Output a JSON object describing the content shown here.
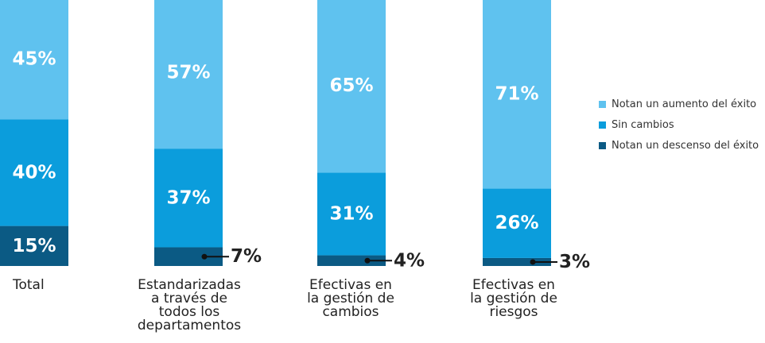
{
  "chart_data": {
    "type": "bar",
    "stacked": true,
    "categories": [
      "Total",
      "Estandarizadas\na través de\ntodos los\ndepartamentos",
      "Efectivas en\nla gestión de\ncambios",
      "Efectivas en\nla gestión de\nriesgos"
    ],
    "series": [
      {
        "name": "Notan un aumento del éxito",
        "color": "#5fc2ef",
        "values": [
          45,
          57,
          65,
          71
        ],
        "labels": [
          "45%",
          "57%",
          "65%",
          "71%"
        ]
      },
      {
        "name": "Sin cambios",
        "color": "#0b9ddc",
        "values": [
          40,
          37,
          31,
          26
        ],
        "labels": [
          "40%",
          "37%",
          "31%",
          "26%"
        ]
      },
      {
        "name": "Notan un descenso del éxito",
        "color": "#0b5a84",
        "values": [
          15,
          7,
          4,
          3
        ],
        "labels": [
          "15%",
          "7%",
          "4%",
          "3%"
        ]
      }
    ],
    "ylim": [
      0,
      100
    ],
    "grid": false,
    "legend_position": "right"
  }
}
